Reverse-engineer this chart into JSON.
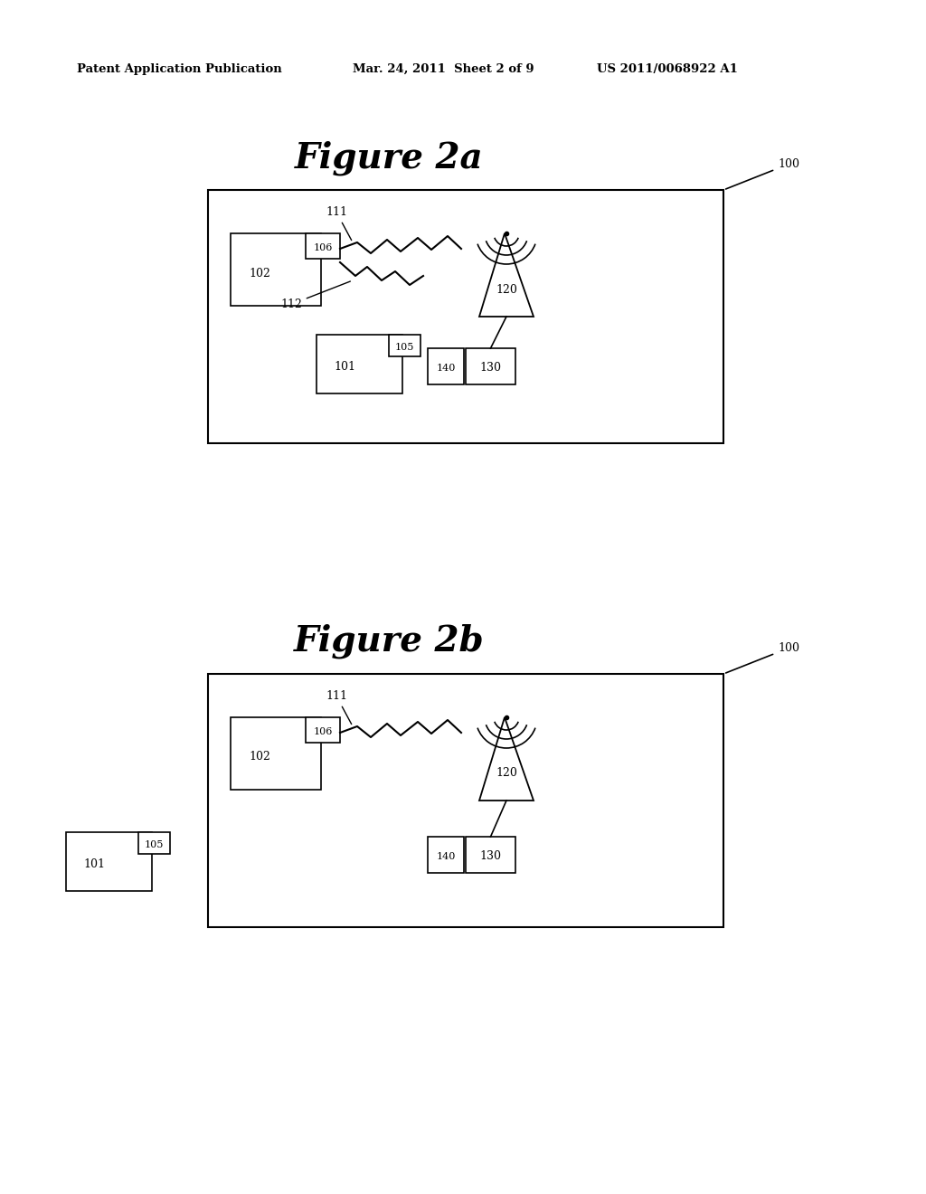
{
  "bg_color": "#ffffff",
  "header_left": "Patent Application Publication",
  "header_mid": "Mar. 24, 2011  Sheet 2 of 9",
  "header_right": "US 2011/0068922 A1",
  "fig2a_title": "Figure 2a",
  "fig2b_title": "Figure 2b"
}
